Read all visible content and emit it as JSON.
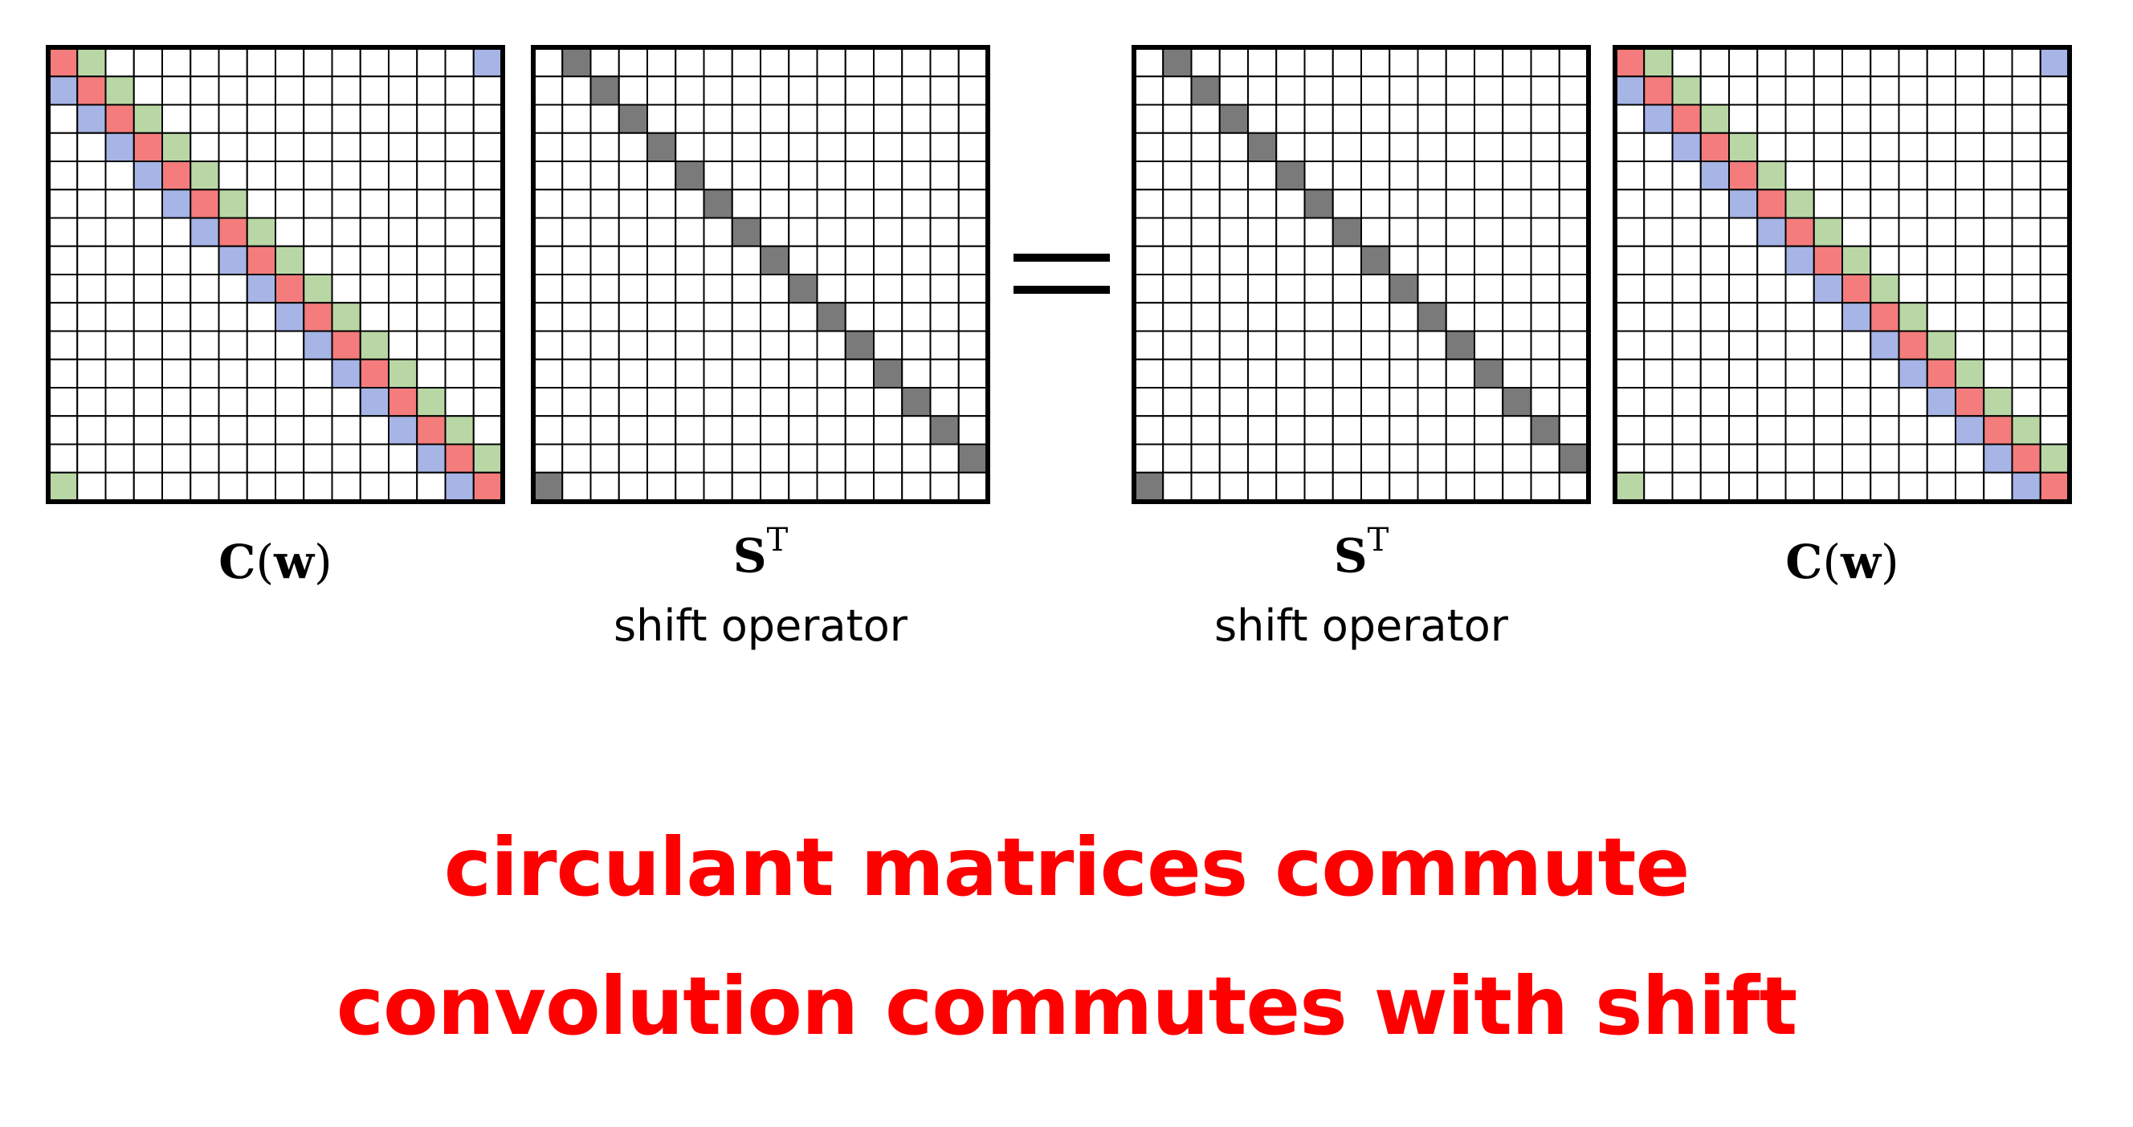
{
  "size": 16,
  "colors": {
    "red": "#f47c7c",
    "green": "#b9d7a5",
    "blue": "#a6b4e6",
    "gray": "#7a7a7a",
    "caption": "#ff0000"
  },
  "equation": {
    "lhs": [
      {
        "kind": "circulant",
        "label_main": "C",
        "label_arg": "w"
      },
      {
        "kind": "shift",
        "label_main": "S",
        "label_sup": "T",
        "sublabel": "shift operator"
      }
    ],
    "rhs": [
      {
        "kind": "shift",
        "label_main": "S",
        "label_sup": "T",
        "sublabel": "shift operator"
      },
      {
        "kind": "circulant",
        "label_main": "C",
        "label_arg": "w"
      }
    ]
  },
  "captions": {
    "line1": "circulant matrices commute",
    "line2": "convolution commutes with shift"
  }
}
